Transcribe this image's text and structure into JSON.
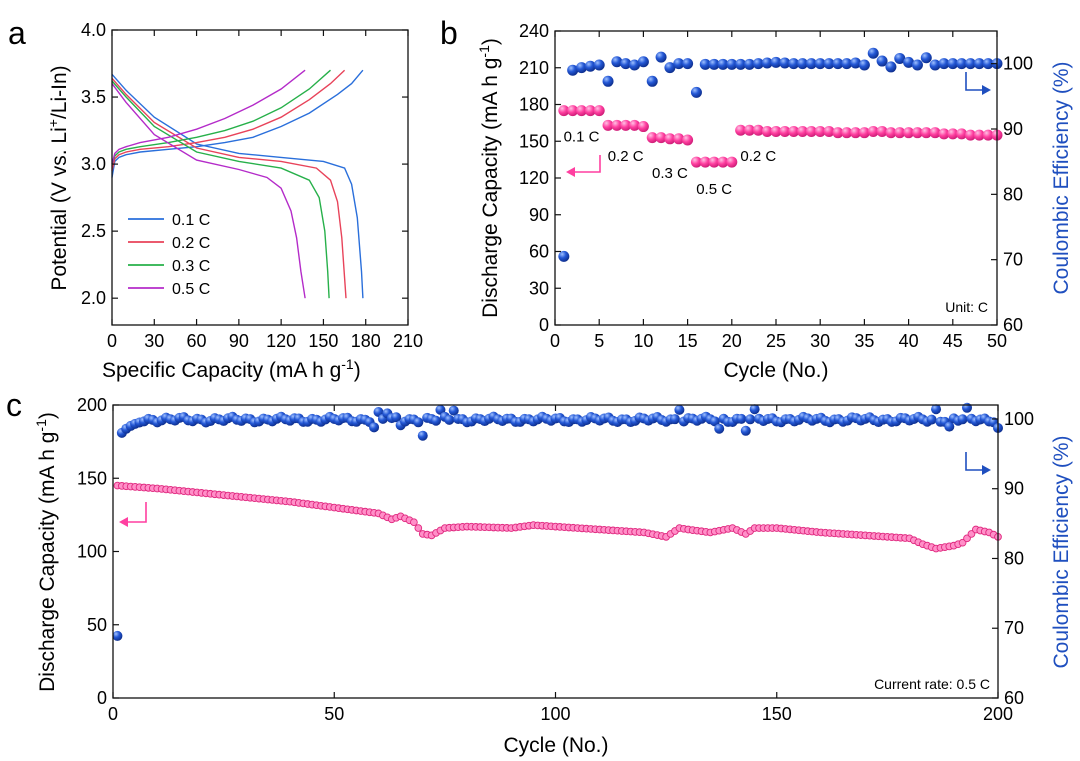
{
  "colors": {
    "blue_marker": "#1f4fbf",
    "pink_marker": "#ff3fa0",
    "c01": "#2a6fdb",
    "c02": "#e8435a",
    "c03": "#27b04a",
    "c05": "#b42bc9",
    "axis": "#111111"
  },
  "chart_data": [
    {
      "id": "a",
      "panel_label": "a",
      "type": "line",
      "xlabel_main": "Specific Capacity (mA h g",
      "xlabel_sup": "-1",
      "xlabel_end": ")",
      "ylabel_main": "Potential (V vs. Li",
      "ylabel_sup": "+",
      "ylabel_end": "/Li-In)",
      "xlim": [
        0,
        210
      ],
      "ylim": [
        1.8,
        4.0
      ],
      "xticks": [
        0,
        30,
        60,
        90,
        120,
        150,
        180,
        210
      ],
      "yticks": [
        2.0,
        2.5,
        3.0,
        3.5,
        4.0
      ],
      "ytick_labels": [
        "2.0",
        "2.5",
        "3.0",
        "3.5",
        "4.0"
      ],
      "legend": [
        {
          "label": "0.1 C",
          "color_key": "c01"
        },
        {
          "label": "0.2 C",
          "color_key": "c02"
        },
        {
          "label": "0.3 C",
          "color_key": "c03"
        },
        {
          "label": "0.5 C",
          "color_key": "c05"
        }
      ],
      "series": [
        {
          "name": "0.1 C charge",
          "color_key": "c01",
          "x": [
            0,
            2,
            5,
            10,
            20,
            40,
            60,
            80,
            100,
            120,
            140,
            160,
            170,
            178
          ],
          "y": [
            2.9,
            3.02,
            3.05,
            3.07,
            3.09,
            3.11,
            3.13,
            3.16,
            3.2,
            3.28,
            3.38,
            3.52,
            3.6,
            3.7
          ]
        },
        {
          "name": "0.1 C discharge",
          "color_key": "c01",
          "x": [
            0,
            10,
            30,
            60,
            90,
            120,
            150,
            165,
            170,
            174,
            177,
            178
          ],
          "y": [
            3.67,
            3.55,
            3.35,
            3.15,
            3.08,
            3.05,
            3.02,
            2.97,
            2.85,
            2.6,
            2.2,
            2.0
          ]
        },
        {
          "name": "0.2 C charge",
          "color_key": "c02",
          "x": [
            0,
            2,
            5,
            10,
            20,
            40,
            60,
            80,
            100,
            120,
            140,
            155,
            165
          ],
          "y": [
            2.95,
            3.04,
            3.07,
            3.09,
            3.11,
            3.13,
            3.16,
            3.2,
            3.26,
            3.35,
            3.48,
            3.6,
            3.7
          ]
        },
        {
          "name": "0.2 C discharge",
          "color_key": "c02",
          "x": [
            0,
            10,
            30,
            60,
            90,
            120,
            145,
            155,
            160,
            163,
            165,
            166
          ],
          "y": [
            3.64,
            3.52,
            3.31,
            3.12,
            3.05,
            3.02,
            2.97,
            2.88,
            2.72,
            2.45,
            2.15,
            2.0
          ]
        },
        {
          "name": "0.3 C charge",
          "color_key": "c03",
          "x": [
            0,
            2,
            5,
            10,
            20,
            40,
            60,
            80,
            100,
            120,
            140,
            155
          ],
          "y": [
            3.0,
            3.06,
            3.09,
            3.11,
            3.13,
            3.16,
            3.2,
            3.25,
            3.32,
            3.42,
            3.56,
            3.7
          ]
        },
        {
          "name": "0.3 C discharge",
          "color_key": "c03",
          "x": [
            0,
            10,
            30,
            60,
            90,
            120,
            140,
            147,
            151,
            153,
            154
          ],
          "y": [
            3.62,
            3.5,
            3.28,
            3.09,
            3.02,
            2.97,
            2.88,
            2.75,
            2.5,
            2.2,
            2.0
          ]
        },
        {
          "name": "0.5 C charge",
          "color_key": "c05",
          "x": [
            0,
            2,
            5,
            10,
            20,
            40,
            60,
            80,
            100,
            120,
            137
          ],
          "y": [
            3.0,
            3.08,
            3.11,
            3.13,
            3.16,
            3.2,
            3.26,
            3.34,
            3.44,
            3.56,
            3.7
          ]
        },
        {
          "name": "0.5 C discharge",
          "color_key": "c05",
          "x": [
            0,
            10,
            30,
            60,
            90,
            110,
            120,
            127,
            131,
            134,
            137
          ],
          "y": [
            3.6,
            3.46,
            3.22,
            3.03,
            2.96,
            2.9,
            2.82,
            2.65,
            2.45,
            2.2,
            2.0
          ]
        }
      ]
    },
    {
      "id": "b",
      "panel_label": "b",
      "type": "scatter",
      "xlabel": "Cycle (No.)",
      "ylabel_left_main": "Discharge Capacity (mA h g",
      "ylabel_left_sup": "-1",
      "ylabel_left_end": ")",
      "ylabel_right": "Coulombic Efficiency (%)",
      "xlim": [
        0,
        50
      ],
      "ylim_left": [
        0,
        240
      ],
      "ylim_right": [
        60,
        105
      ],
      "xticks": [
        0,
        5,
        10,
        15,
        20,
        25,
        30,
        35,
        40,
        45,
        50
      ],
      "yticks_left": [
        0,
        30,
        60,
        90,
        120,
        150,
        180,
        210,
        240
      ],
      "yticks_right": [
        60,
        70,
        80,
        90,
        100
      ],
      "unit_note": "Unit: C",
      "rate_labels": [
        {
          "text": "0.1 C",
          "x": 3,
          "y": 150
        },
        {
          "text": "0.2 C",
          "x": 8,
          "y": 134
        },
        {
          "text": "0.3 C",
          "x": 13,
          "y": 120
        },
        {
          "text": "0.5 C",
          "x": 18,
          "y": 107
        },
        {
          "text": "0.2 C",
          "x": 23,
          "y": 134
        }
      ],
      "capacity": {
        "name": "Discharge Capacity",
        "color_key": "pink_marker",
        "x": [
          1,
          2,
          3,
          4,
          5,
          6,
          7,
          8,
          9,
          10,
          11,
          12,
          13,
          14,
          15,
          16,
          17,
          18,
          19,
          20,
          21,
          22,
          23,
          24,
          25,
          26,
          27,
          28,
          29,
          30,
          31,
          32,
          33,
          34,
          35,
          36,
          37,
          38,
          39,
          40,
          41,
          42,
          43,
          44,
          45,
          46,
          47,
          48,
          49,
          50
        ],
        "y": [
          175,
          175,
          175,
          175,
          175,
          163,
          163,
          163,
          163,
          162,
          153,
          153,
          152,
          152,
          151,
          133,
          133,
          133,
          133,
          133,
          159,
          159,
          159,
          158,
          158,
          158,
          158,
          158,
          158,
          158,
          158,
          157,
          157,
          157,
          157,
          158,
          158,
          157,
          157,
          157,
          157,
          157,
          157,
          156,
          156,
          156,
          155,
          155,
          155,
          155
        ]
      },
      "efficiency": {
        "name": "Coulombic Efficiency",
        "color_key": "blue_marker",
        "x": [
          1,
          2,
          3,
          4,
          5,
          6,
          7,
          8,
          9,
          10,
          11,
          12,
          13,
          14,
          15,
          16,
          17,
          18,
          19,
          20,
          21,
          22,
          23,
          24,
          25,
          26,
          27,
          28,
          29,
          30,
          31,
          32,
          33,
          34,
          35,
          36,
          37,
          38,
          39,
          40,
          41,
          42,
          43,
          44,
          45,
          46,
          47,
          48,
          49,
          50
        ],
        "y": [
          70.5,
          99.0,
          99.4,
          99.6,
          99.8,
          97.3,
          100.3,
          100.0,
          99.8,
          100.3,
          97.3,
          101.0,
          99.4,
          100.0,
          100.0,
          95.6,
          99.9,
          99.9,
          99.9,
          99.9,
          99.9,
          99.9,
          100.0,
          100.1,
          100.2,
          100.1,
          100.0,
          100.0,
          100.0,
          100.0,
          100.0,
          100.0,
          100.0,
          100.1,
          99.8,
          101.6,
          100.4,
          99.5,
          100.8,
          100.2,
          99.8,
          100.9,
          99.8,
          100.0,
          100.0,
          100.0,
          100.0,
          100.0,
          100.0,
          100.0
        ]
      }
    },
    {
      "id": "c",
      "panel_label": "c",
      "type": "scatter",
      "xlabel": "Cycle (No.)",
      "ylabel_left_main": "Discharge Capacity (mA h g",
      "ylabel_left_sup": "-1",
      "ylabel_left_end": ")",
      "ylabel_right": "Coulombic Efficiency (%)",
      "xlim": [
        0,
        200
      ],
      "ylim_left": [
        0,
        200
      ],
      "ylim_right": [
        60,
        102
      ],
      "xticks": [
        0,
        50,
        100,
        150,
        200
      ],
      "yticks_left": [
        0,
        50,
        100,
        150,
        200
      ],
      "yticks_right": [
        60,
        70,
        80,
        90,
        100
      ],
      "note": "Current rate: 0.5 C",
      "capacity": {
        "name": "Discharge Capacity",
        "color_key": "pink_marker",
        "knots_x": [
          1,
          10,
          20,
          30,
          40,
          50,
          55,
          60,
          63,
          65,
          68,
          70,
          72,
          75,
          80,
          90,
          95,
          100,
          110,
          120,
          125,
          128,
          130,
          135,
          140,
          143,
          145,
          150,
          160,
          170,
          180,
          183,
          186,
          190,
          192,
          195,
          198,
          200
        ],
        "knots_y": [
          145,
          143,
          140,
          137,
          134,
          130,
          128,
          126,
          122,
          124,
          120,
          112,
          111,
          116,
          117,
          116,
          118,
          117,
          115,
          113,
          110,
          116,
          115,
          113,
          116,
          112,
          116,
          116,
          113,
          111,
          109,
          105,
          102,
          104,
          106,
          115,
          113,
          110
        ]
      },
      "efficiency": {
        "name": "Coulombic Efficiency",
        "color_key": "blue_marker",
        "base": 99.9,
        "first_value": 68.9,
        "start_ramp": [
          98.0,
          98.6,
          99.0,
          99.3,
          99.5
        ],
        "outliers": [
          {
            "x": 59,
            "y": 98.8
          },
          {
            "x": 60,
            "y": 101.0
          },
          {
            "x": 62,
            "y": 100.8
          },
          {
            "x": 65,
            "y": 99.1
          },
          {
            "x": 70,
            "y": 97.6
          },
          {
            "x": 74,
            "y": 101.3
          },
          {
            "x": 77,
            "y": 101.2
          },
          {
            "x": 128,
            "y": 101.3
          },
          {
            "x": 137,
            "y": 98.6
          },
          {
            "x": 143,
            "y": 98.3
          },
          {
            "x": 145,
            "y": 101.4
          },
          {
            "x": 186,
            "y": 101.4
          },
          {
            "x": 189,
            "y": 98.9
          },
          {
            "x": 193,
            "y": 101.6
          },
          {
            "x": 200,
            "y": 98.7
          }
        ]
      }
    }
  ]
}
